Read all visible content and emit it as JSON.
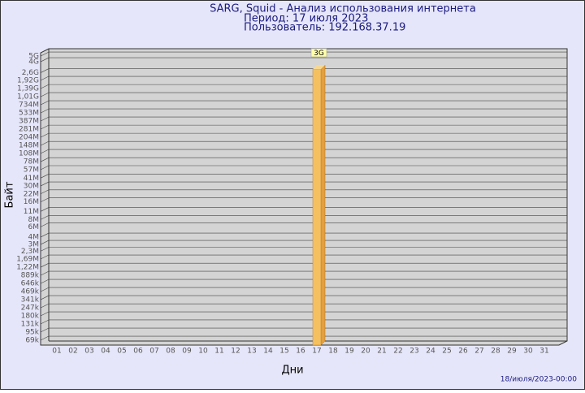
{
  "chart_data": {
    "type": "bar",
    "title": "SARG, Squid - Анализ использования интернета",
    "subtitle": "Период: 17 июля 2023",
    "user": "Пользователь: 192.168.37.19",
    "x_label": "Дни",
    "y_label": "Байт",
    "footer": "18/июля/2023-00:00",
    "log_scale": true,
    "grid": true,
    "color": "#f5c060",
    "categories": [
      "01",
      "02",
      "03",
      "04",
      "05",
      "06",
      "07",
      "08",
      "09",
      "10",
      "11",
      "12",
      "13",
      "14",
      "15",
      "16",
      "17",
      "18",
      "19",
      "20",
      "21",
      "22",
      "23",
      "24",
      "25",
      "26",
      "27",
      "28",
      "29",
      "30",
      "31"
    ],
    "values": [
      null,
      null,
      null,
      null,
      null,
      null,
      null,
      null,
      null,
      null,
      null,
      null,
      null,
      null,
      null,
      null,
      3000000000,
      null,
      null,
      null,
      null,
      null,
      null,
      null,
      null,
      null,
      null,
      null,
      null,
      null,
      null
    ],
    "value_labels": [
      null,
      null,
      null,
      null,
      null,
      null,
      null,
      null,
      null,
      null,
      null,
      null,
      null,
      null,
      null,
      null,
      "3G",
      null,
      null,
      null,
      null,
      null,
      null,
      null,
      null,
      null,
      null,
      null,
      null,
      null,
      null
    ],
    "ylim": [
      57000,
      5700000000
    ],
    "yticks": [
      {
        "value": 5000000000,
        "label": "5G"
      },
      {
        "value": 4000000000,
        "label": "4G"
      },
      {
        "value": 2600000000,
        "label": "2,6G"
      },
      {
        "value": 1920000000,
        "label": "1,92G"
      },
      {
        "value": 1390000000,
        "label": "1,39G"
      },
      {
        "value": 1010000000,
        "label": "1,01G"
      },
      {
        "value": 734000000,
        "label": "734M"
      },
      {
        "value": 533000000,
        "label": "533M"
      },
      {
        "value": 387000000,
        "label": "387M"
      },
      {
        "value": 281000000,
        "label": "281M"
      },
      {
        "value": 204000000,
        "label": "204M"
      },
      {
        "value": 148000000,
        "label": "148M"
      },
      {
        "value": 108000000,
        "label": "108M"
      },
      {
        "value": 78000000,
        "label": "78M"
      },
      {
        "value": 57000000,
        "label": "57M"
      },
      {
        "value": 41000000,
        "label": "41M"
      },
      {
        "value": 30000000,
        "label": "30M"
      },
      {
        "value": 22000000,
        "label": "22M"
      },
      {
        "value": 16000000,
        "label": "16M"
      },
      {
        "value": 11000000,
        "label": "11M"
      },
      {
        "value": 8000000,
        "label": "8M"
      },
      {
        "value": 6000000,
        "label": "6M"
      },
      {
        "value": 4000000,
        "label": "4M"
      },
      {
        "value": 3000000,
        "label": "3M"
      },
      {
        "value": 2300000,
        "label": "2,3M"
      },
      {
        "value": 1690000,
        "label": "1,69M"
      },
      {
        "value": 1220000,
        "label": "1,22M"
      },
      {
        "value": 889000,
        "label": "889k"
      },
      {
        "value": 646000,
        "label": "646k"
      },
      {
        "value": 469000,
        "label": "469k"
      },
      {
        "value": 341000,
        "label": "341k"
      },
      {
        "value": 247000,
        "label": "247k"
      },
      {
        "value": 180000,
        "label": "180k"
      },
      {
        "value": 131000,
        "label": "131k"
      },
      {
        "value": 95000,
        "label": "95k"
      },
      {
        "value": 69000,
        "label": "69k"
      }
    ]
  }
}
